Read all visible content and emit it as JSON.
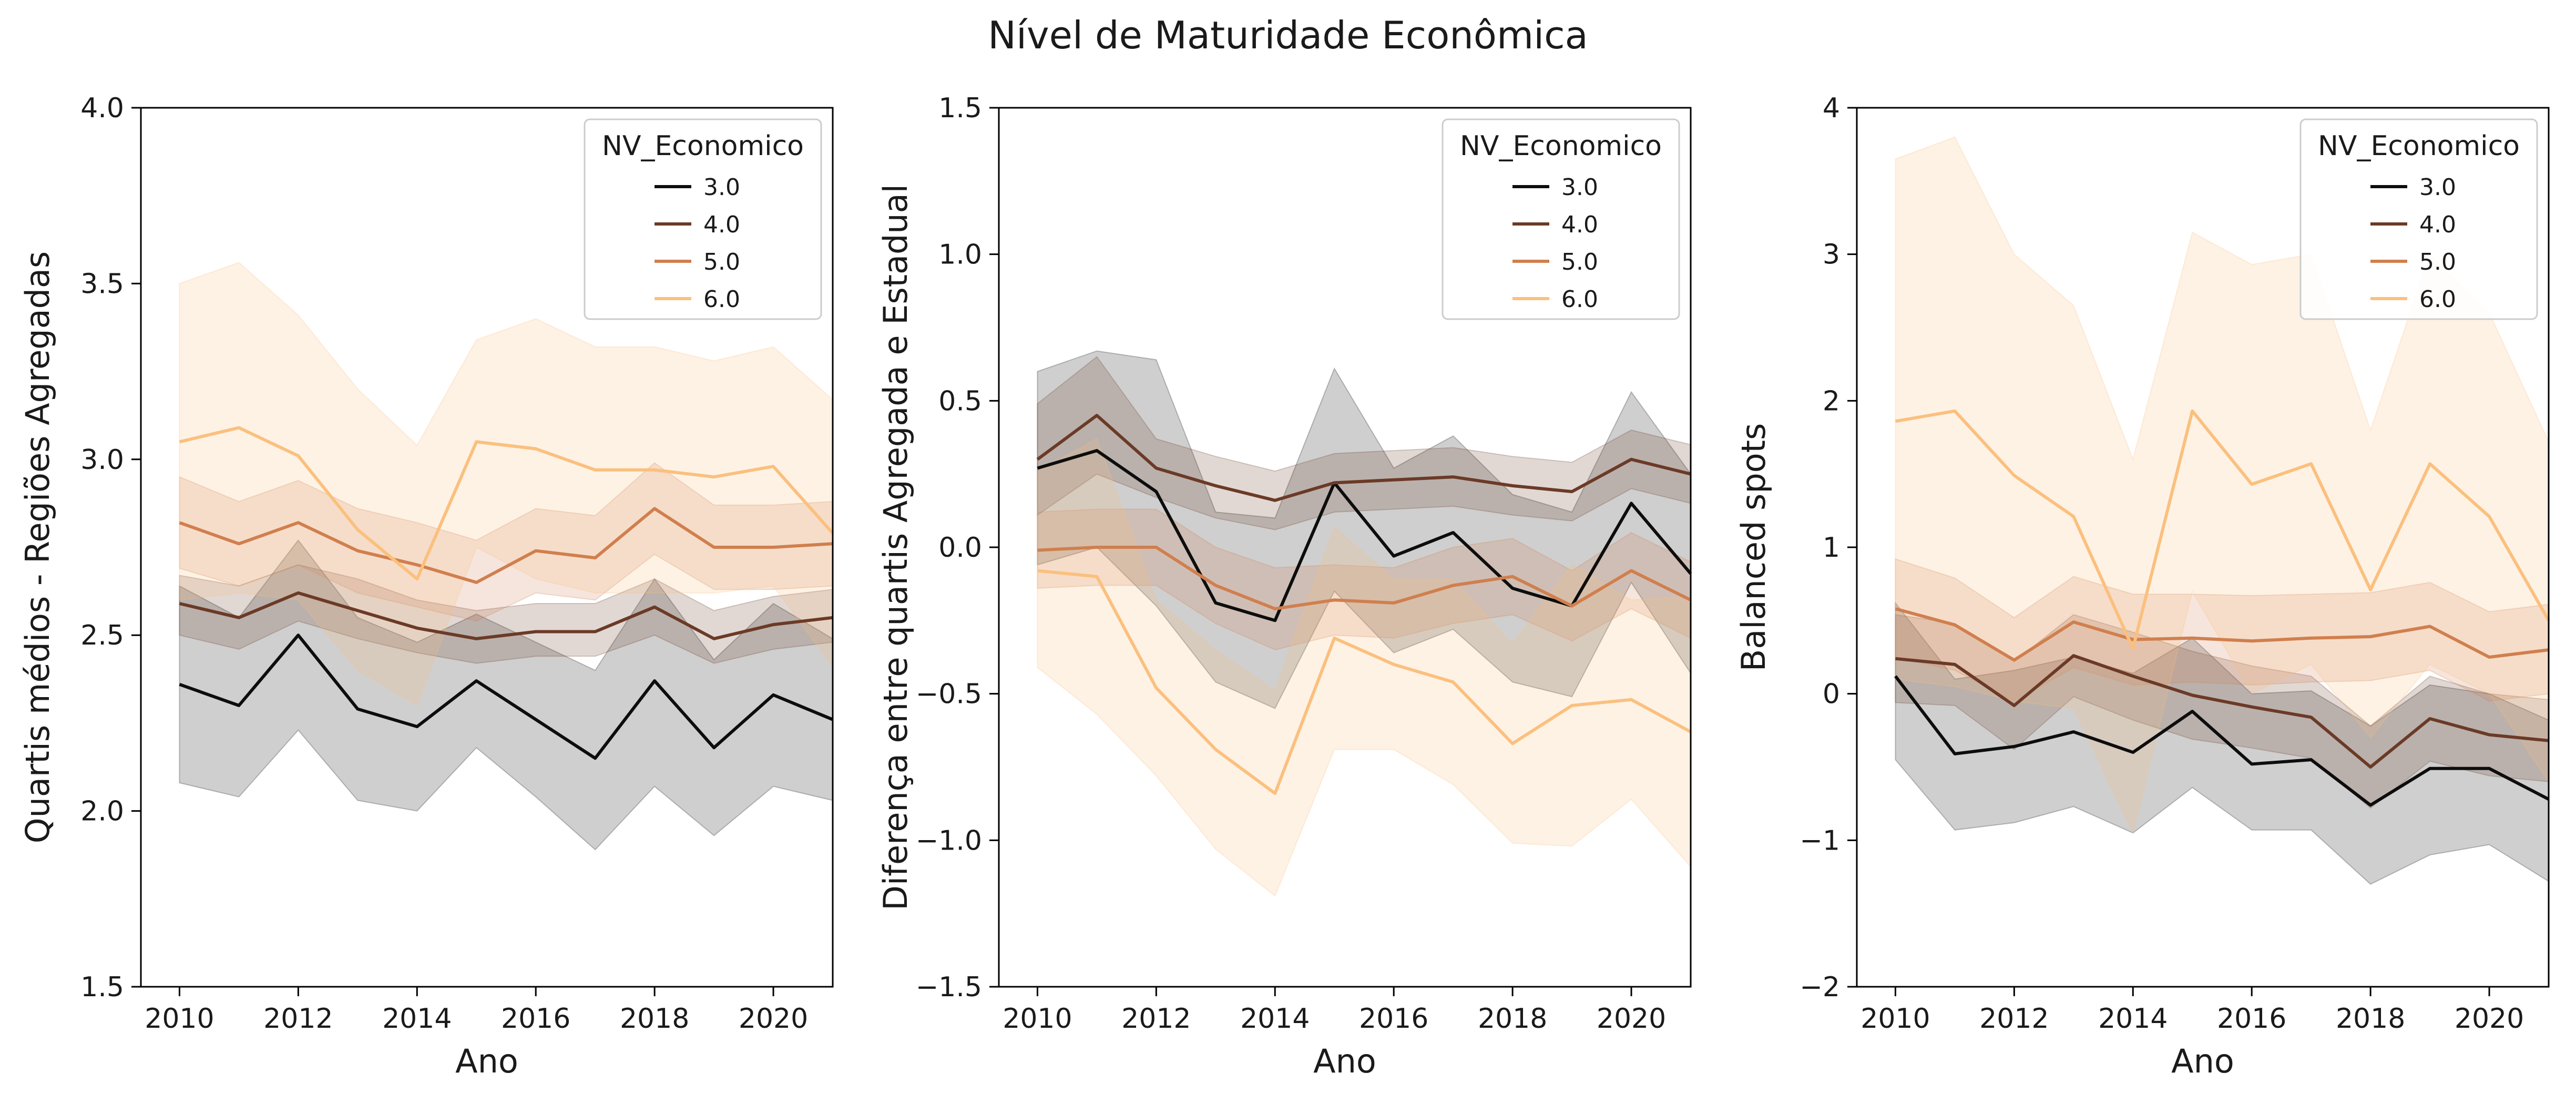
{
  "title": "Nível de Maturidade Econômica",
  "chart_data": [
    {
      "type": "line",
      "xlabel": "Ano",
      "ylabel": "Quartis médios - Regiões Agregadas",
      "xlim": [
        2009.35,
        2021.0
      ],
      "ylim": [
        1.5,
        4.0
      ],
      "xticks": [
        2010,
        2012,
        2014,
        2016,
        2018,
        2020
      ],
      "yticks": [
        1.5,
        2.0,
        2.5,
        3.0,
        3.5,
        4.0
      ],
      "ytick_labels": [
        "1.5",
        "2.0",
        "2.5",
        "3.0",
        "3.5",
        "4.0"
      ],
      "legend": {
        "title": "NV_Economico",
        "position": "upper right"
      },
      "x": [
        2010,
        2011,
        2012,
        2013,
        2014,
        2015,
        2016,
        2017,
        2018,
        2019,
        2020,
        2021
      ],
      "series": [
        {
          "name": "3.0",
          "color": "#0d0d0d",
          "values": [
            2.36,
            2.3,
            2.5,
            2.29,
            2.24,
            2.37,
            2.26,
            2.15,
            2.37,
            2.18,
            2.33,
            2.26
          ],
          "lower": [
            2.08,
            2.04,
            2.23,
            2.03,
            2.0,
            2.18,
            2.04,
            1.89,
            2.07,
            1.93,
            2.07,
            2.03
          ],
          "upper": [
            2.64,
            2.55,
            2.77,
            2.55,
            2.48,
            2.56,
            2.48,
            2.4,
            2.66,
            2.43,
            2.59,
            2.49
          ]
        },
        {
          "name": "4.0",
          "color": "#6b3a26",
          "values": [
            2.59,
            2.55,
            2.62,
            2.57,
            2.52,
            2.49,
            2.51,
            2.51,
            2.58,
            2.49,
            2.53,
            2.55
          ],
          "lower": [
            2.5,
            2.46,
            2.54,
            2.49,
            2.45,
            2.42,
            2.44,
            2.44,
            2.5,
            2.42,
            2.46,
            2.48
          ],
          "upper": [
            2.67,
            2.64,
            2.7,
            2.66,
            2.6,
            2.57,
            2.59,
            2.59,
            2.66,
            2.57,
            2.61,
            2.63
          ]
        },
        {
          "name": "5.0",
          "color": "#d07f4e",
          "values": [
            2.82,
            2.76,
            2.82,
            2.74,
            2.7,
            2.65,
            2.74,
            2.72,
            2.86,
            2.75,
            2.75,
            2.76
          ],
          "lower": [
            2.69,
            2.64,
            2.7,
            2.62,
            2.58,
            2.54,
            2.62,
            2.6,
            2.73,
            2.63,
            2.63,
            2.64
          ],
          "upper": [
            2.95,
            2.88,
            2.94,
            2.86,
            2.82,
            2.77,
            2.86,
            2.84,
            2.99,
            2.87,
            2.87,
            2.88
          ]
        },
        {
          "name": "6.0",
          "color": "#fbc07e",
          "values": [
            3.05,
            3.09,
            3.01,
            2.8,
            2.66,
            3.05,
            3.03,
            2.97,
            2.97,
            2.95,
            2.98,
            2.79
          ],
          "lower": [
            2.6,
            2.62,
            2.6,
            2.4,
            2.3,
            2.75,
            2.66,
            2.62,
            2.62,
            2.62,
            2.64,
            2.41
          ],
          "upper": [
            3.5,
            3.56,
            3.41,
            3.2,
            3.04,
            3.34,
            3.4,
            3.32,
            3.32,
            3.28,
            3.32,
            3.17
          ]
        }
      ]
    },
    {
      "type": "line",
      "xlabel": "Ano",
      "ylabel": "Diferença entre quartis Agregada e Estadual",
      "xlim": [
        2009.35,
        2021.0
      ],
      "ylim": [
        -1.5,
        1.5
      ],
      "xticks": [
        2010,
        2012,
        2014,
        2016,
        2018,
        2020
      ],
      "yticks": [
        -1.5,
        -1.0,
        -0.5,
        0.0,
        0.5,
        1.0,
        1.5
      ],
      "ytick_labels": [
        "−1.5",
        "−1.0",
        "−0.5",
        "0.0",
        "0.5",
        "1.0",
        "1.5"
      ],
      "legend": {
        "title": "NV_Economico",
        "position": "upper right"
      },
      "x": [
        2010,
        2011,
        2012,
        2013,
        2014,
        2015,
        2016,
        2017,
        2018,
        2019,
        2020,
        2021
      ],
      "series": [
        {
          "name": "3.0",
          "color": "#0d0d0d",
          "values": [
            0.27,
            0.33,
            0.19,
            -0.19,
            -0.25,
            0.22,
            -0.03,
            0.05,
            -0.14,
            -0.2,
            0.15,
            -0.09
          ],
          "lower": [
            -0.06,
            0.0,
            -0.2,
            -0.46,
            -0.55,
            -0.15,
            -0.36,
            -0.28,
            -0.46,
            -0.51,
            -0.12,
            -0.43
          ],
          "upper": [
            0.6,
            0.67,
            0.64,
            0.12,
            0.1,
            0.61,
            0.27,
            0.38,
            0.18,
            0.12,
            0.53,
            0.25
          ]
        },
        {
          "name": "4.0",
          "color": "#6b3a26",
          "values": [
            0.3,
            0.45,
            0.27,
            0.21,
            0.16,
            0.22,
            0.23,
            0.24,
            0.21,
            0.19,
            0.3,
            0.25
          ],
          "lower": [
            0.11,
            0.25,
            0.17,
            0.1,
            0.06,
            0.12,
            0.13,
            0.14,
            0.11,
            0.09,
            0.2,
            0.15
          ],
          "upper": [
            0.49,
            0.65,
            0.37,
            0.31,
            0.26,
            0.32,
            0.33,
            0.34,
            0.31,
            0.29,
            0.4,
            0.35
          ]
        },
        {
          "name": "5.0",
          "color": "#d07f4e",
          "values": [
            -0.01,
            0.0,
            0.0,
            -0.13,
            -0.21,
            -0.18,
            -0.19,
            -0.13,
            -0.1,
            -0.2,
            -0.08,
            -0.18
          ],
          "lower": [
            -0.14,
            -0.13,
            -0.13,
            -0.26,
            -0.35,
            -0.3,
            -0.31,
            -0.26,
            -0.23,
            -0.32,
            -0.21,
            -0.31
          ],
          "upper": [
            0.12,
            0.13,
            0.13,
            0.0,
            -0.07,
            -0.06,
            -0.07,
            0.0,
            0.03,
            -0.08,
            0.05,
            -0.05
          ]
        },
        {
          "name": "6.0",
          "color": "#fbc07e",
          "values": [
            -0.08,
            -0.1,
            -0.48,
            -0.69,
            -0.84,
            -0.31,
            -0.4,
            -0.46,
            -0.67,
            -0.54,
            -0.52,
            -0.63
          ],
          "lower": [
            -0.41,
            -0.57,
            -0.78,
            -1.03,
            -1.19,
            -0.69,
            -0.69,
            -0.81,
            -1.01,
            -1.02,
            -0.86,
            -1.09
          ],
          "upper": [
            0.26,
            0.37,
            -0.18,
            -0.35,
            -0.49,
            0.07,
            -0.11,
            -0.11,
            -0.33,
            -0.06,
            -0.18,
            -0.17
          ]
        }
      ]
    },
    {
      "type": "line",
      "xlabel": "Ano",
      "ylabel": "Balanced spots",
      "xlim": [
        2009.35,
        2021.0
      ],
      "ylim": [
        -2,
        4
      ],
      "xticks": [
        2010,
        2012,
        2014,
        2016,
        2018,
        2020
      ],
      "yticks": [
        -2,
        -1,
        0,
        1,
        2,
        3,
        4
      ],
      "ytick_labels": [
        "−2",
        "−1",
        "0",
        "1",
        "2",
        "3",
        "4"
      ],
      "legend": {
        "title": "NV_Economico",
        "position": "upper right"
      },
      "x": [
        2010,
        2011,
        2012,
        2013,
        2014,
        2015,
        2016,
        2017,
        2018,
        2019,
        2020,
        2021
      ],
      "series": [
        {
          "name": "3.0",
          "color": "#0d0d0d",
          "values": [
            0.12,
            -0.41,
            -0.36,
            -0.26,
            -0.4,
            -0.12,
            -0.48,
            -0.45,
            -0.76,
            -0.51,
            -0.51,
            -0.72
          ],
          "lower": [
            -0.45,
            -0.93,
            -0.88,
            -0.77,
            -0.95,
            -0.64,
            -0.93,
            -0.93,
            -1.3,
            -1.1,
            -1.03,
            -1.28
          ],
          "upper": [
            0.62,
            0.1,
            0.16,
            0.25,
            0.14,
            0.38,
            0.0,
            0.02,
            -0.22,
            0.06,
            0.0,
            -0.18
          ]
        },
        {
          "name": "4.0",
          "color": "#6b3a26",
          "values": [
            0.24,
            0.2,
            -0.08,
            0.26,
            0.12,
            -0.01,
            -0.09,
            -0.16,
            -0.5,
            -0.17,
            -0.28,
            -0.32
          ],
          "lower": [
            -0.06,
            -0.08,
            -0.38,
            -0.02,
            -0.18,
            -0.31,
            -0.37,
            -0.44,
            -0.78,
            -0.46,
            -0.56,
            -0.6
          ],
          "upper": [
            0.54,
            0.48,
            0.22,
            0.54,
            0.42,
            0.29,
            0.19,
            0.12,
            -0.22,
            0.12,
            0.0,
            -0.04
          ]
        },
        {
          "name": "5.0",
          "color": "#d07f4e",
          "values": [
            0.58,
            0.47,
            0.23,
            0.49,
            0.37,
            0.38,
            0.36,
            0.38,
            0.39,
            0.46,
            0.25,
            0.3
          ],
          "lower": [
            0.25,
            0.16,
            -0.05,
            0.18,
            0.06,
            0.08,
            0.06,
            0.08,
            0.09,
            0.16,
            -0.05,
            0.0
          ],
          "upper": [
            0.92,
            0.79,
            0.52,
            0.8,
            0.68,
            0.68,
            0.67,
            0.68,
            0.69,
            0.76,
            0.56,
            0.61
          ]
        },
        {
          "name": "6.0",
          "color": "#fbc07e",
          "values": [
            1.86,
            1.93,
            1.49,
            1.21,
            0.31,
            1.93,
            1.43,
            1.57,
            0.71,
            1.57,
            1.21,
            0.5
          ],
          "lower": [
            0.1,
            0.05,
            -0.05,
            -0.1,
            -0.95,
            0.7,
            0.0,
            0.2,
            -0.3,
            0.2,
            0.0,
            -0.6
          ],
          "upper": [
            3.65,
            3.8,
            3.0,
            2.65,
            1.6,
            3.15,
            2.93,
            3.0,
            1.8,
            3.0,
            2.6,
            1.72
          ]
        }
      ]
    }
  ]
}
